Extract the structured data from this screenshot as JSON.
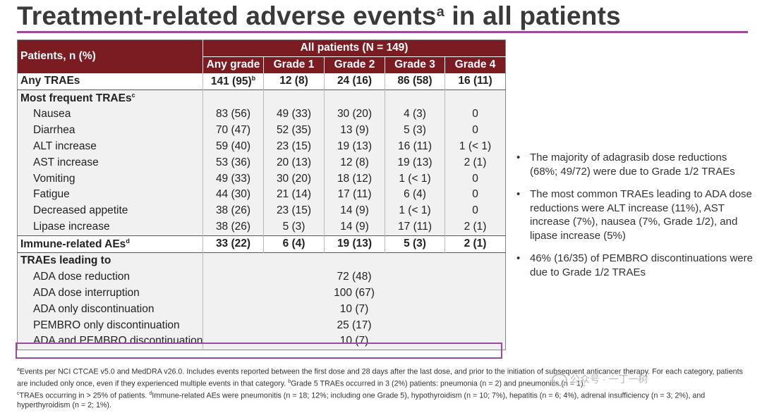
{
  "title": {
    "text": "Treatment-related adverse events",
    "sup": "a",
    "suffix": " in all patients"
  },
  "table": {
    "patients_header": "Patients, n (%)",
    "group_header": "All patients (N = 149)",
    "grade_headers": [
      "Any grade",
      "Grade 1",
      "Grade 2",
      "Grade 3",
      "Grade 4"
    ],
    "any_traes": {
      "label": "Any TRAEs",
      "values": [
        "141 (95)",
        "12 (8)",
        "24 (16)",
        "86 (58)",
        "16 (11)"
      ],
      "any_sup": "b"
    },
    "most_frequent": {
      "label": "Most frequent TRAEs",
      "sup": "c"
    },
    "rows": [
      {
        "label": "Nausea",
        "values": [
          "83 (56)",
          "49 (33)",
          "30 (20)",
          "4 (3)",
          "0"
        ]
      },
      {
        "label": "Diarrhea",
        "values": [
          "70 (47)",
          "52 (35)",
          "13 (9)",
          "5 (3)",
          "0"
        ]
      },
      {
        "label": "ALT increase",
        "values": [
          "59 (40)",
          "23 (15)",
          "19 (13)",
          "16 (11)",
          "1 (< 1)"
        ]
      },
      {
        "label": "AST increase",
        "values": [
          "53 (36)",
          "20 (13)",
          "12 (8)",
          "19 (13)",
          "2 (1)"
        ]
      },
      {
        "label": "Vomiting",
        "values": [
          "49 (33)",
          "30 (20)",
          "18 (12)",
          "1 (< 1)",
          "0"
        ]
      },
      {
        "label": "Fatigue",
        "values": [
          "44 (30)",
          "21 (14)",
          "17 (11)",
          "6 (4)",
          "0"
        ]
      },
      {
        "label": "Decreased appetite",
        "values": [
          "38 (26)",
          "23 (15)",
          "14 (9)",
          "1 (< 1)",
          "0"
        ]
      },
      {
        "label": "Lipase increase",
        "values": [
          "38 (26)",
          "5 (3)",
          "14 (9)",
          "17 (11)",
          "2 (1)"
        ]
      }
    ],
    "immune": {
      "label": "Immune-related AEs",
      "sup": "d",
      "values": [
        "33 (22)",
        "6 (4)",
        "19 (13)",
        "5 (3)",
        "2 (1)"
      ]
    },
    "leading": {
      "label": "TRAEs leading to"
    },
    "leading_rows": [
      {
        "label": "ADA dose reduction",
        "value": "72 (48)"
      },
      {
        "label": "ADA dose interruption",
        "value": "100 (67)"
      },
      {
        "label": "ADA only discontinuation",
        "value": "10 (7)"
      },
      {
        "label": "PEMBRO only discontinuation",
        "value": "25 (17)"
      },
      {
        "label": "ADA and PEMBRO discontinuation",
        "value": "10 (7)"
      }
    ]
  },
  "bullets": [
    "The majority of adagrasib dose reductions (68%; 49/72) were due to Grade 1/2 TRAEs",
    "The most common TRAEs leading to ADA dose reductions were ALT increase (11%), AST increase (7%), nausea (7%, Grade 1/2), and lipase increase (5%)",
    "46% (16/35) of PEMBRO discontinuations were due to Grade 1/2 TRAEs"
  ],
  "footnote": {
    "a_mark": "a",
    "a_text": "Events per NCI CTCAE v5.0 and MedDRA v26.0. Includes events reported between the first dose and 28 days after the last dose, and prior to the initiation of subsequent anticancer therapy. For each category, patients are included only once, even if they experienced multiple events in that category. ",
    "b_mark": "b",
    "b_text": "Grade 5 TRAEs occurred in 3 (2%) patients: pneumonia (n = 2) and pneumonitis (n = 1). ",
    "c_mark": "c",
    "c_text": "TRAEs occurring in > 25% of patients. ",
    "d_mark": "d",
    "d_text": "Immune-related AEs were pneumonitis (n = 18; 12%; including one Grade 5), hypothyroidism (n = 10; 7%), hepatitis (n = 6; 4%), adrenal insufficiency (n = 3; 2%), and hyperthyroidism (n = 2; 1%)."
  },
  "watermark": "公众号 · 一丁一树"
}
